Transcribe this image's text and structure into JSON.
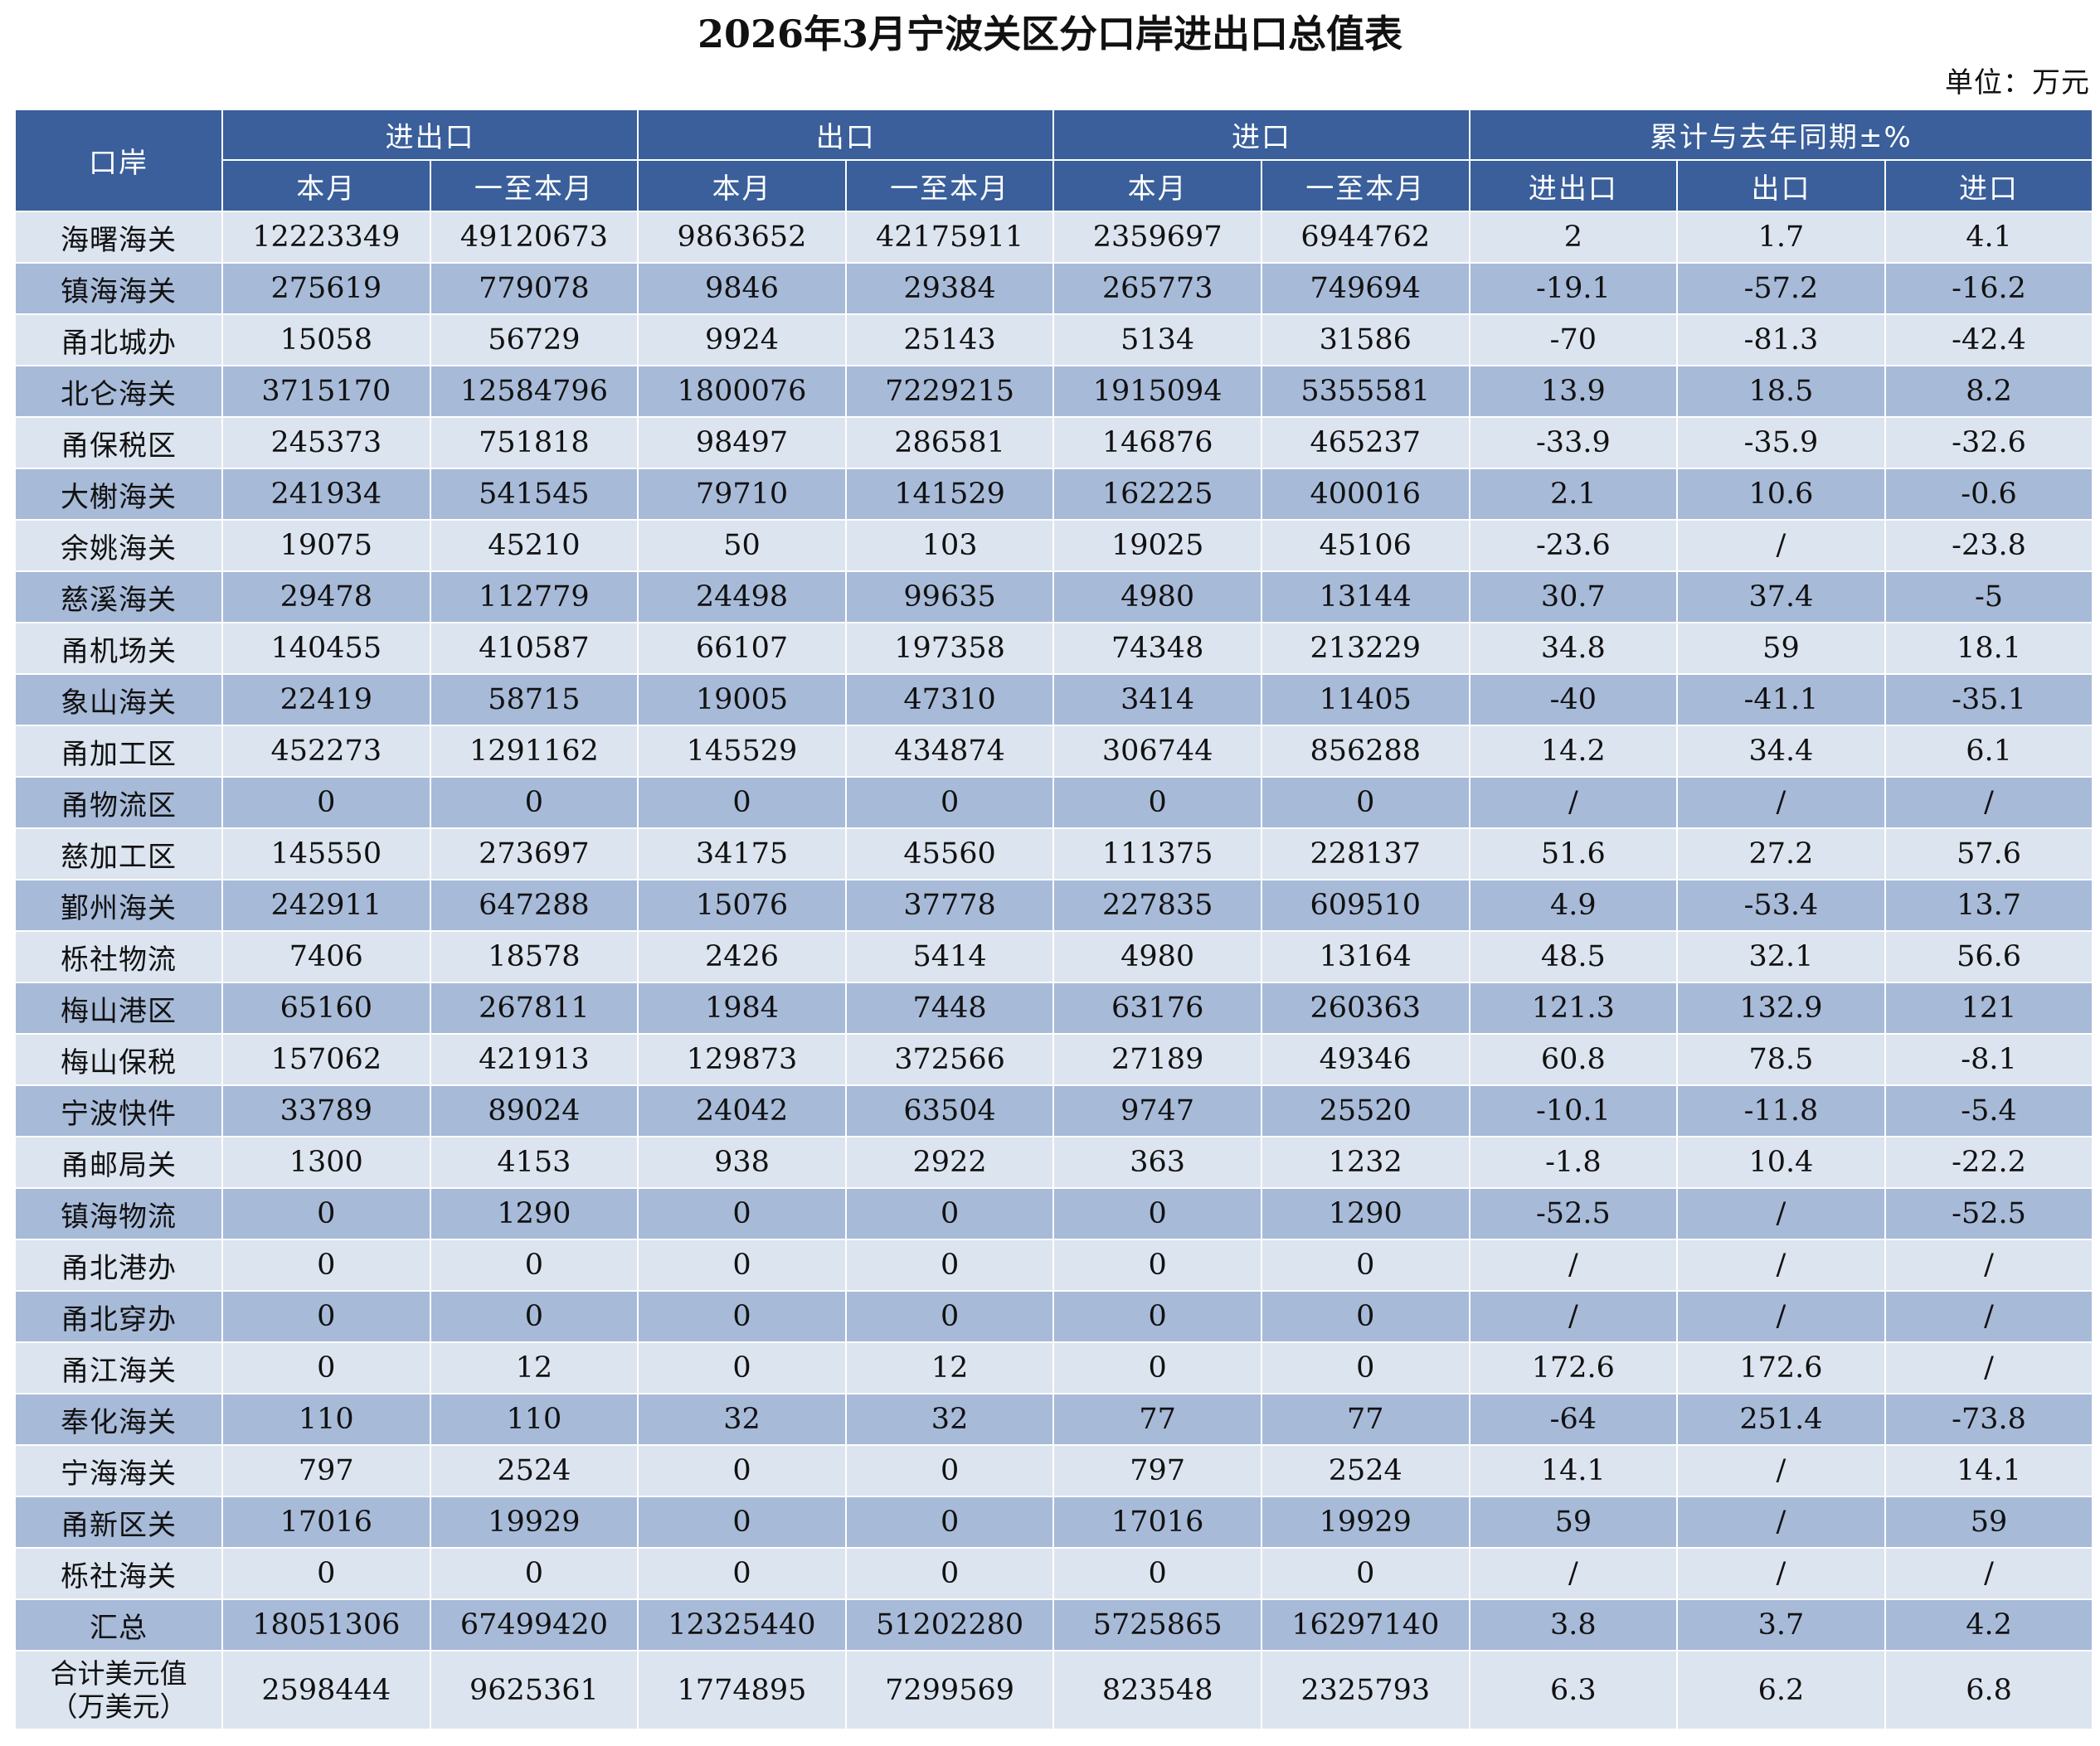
{
  "title": "2026年3月宁波关区分口岸进出口总值表",
  "unit": "单位：万元",
  "header": {
    "port": "口岸",
    "groups": [
      "进出口",
      "出口",
      "进口",
      "累计与去年同期±%"
    ],
    "sub": [
      "本月",
      "一至本月",
      "本月",
      "一至本月",
      "本月",
      "一至本月",
      "进出口",
      "出口",
      "进口"
    ]
  },
  "rows": [
    {
      "port": "海曙海关",
      "values": [
        "12223349",
        "49120673",
        "9863652",
        "42175911",
        "2359697",
        "6944762",
        "2",
        "1.7",
        "4.1"
      ]
    },
    {
      "port": "镇海海关",
      "values": [
        "275619",
        "779078",
        "9846",
        "29384",
        "265773",
        "749694",
        "-19.1",
        "-57.2",
        "-16.2"
      ]
    },
    {
      "port": "甬北城办",
      "values": [
        "15058",
        "56729",
        "9924",
        "25143",
        "5134",
        "31586",
        "-70",
        "-81.3",
        "-42.4"
      ]
    },
    {
      "port": "北仑海关",
      "values": [
        "3715170",
        "12584796",
        "1800076",
        "7229215",
        "1915094",
        "5355581",
        "13.9",
        "18.5",
        "8.2"
      ]
    },
    {
      "port": "甬保税区",
      "values": [
        "245373",
        "751818",
        "98497",
        "286581",
        "146876",
        "465237",
        "-33.9",
        "-35.9",
        "-32.6"
      ]
    },
    {
      "port": "大榭海关",
      "values": [
        "241934",
        "541545",
        "79710",
        "141529",
        "162225",
        "400016",
        "2.1",
        "10.6",
        "-0.6"
      ]
    },
    {
      "port": "余姚海关",
      "values": [
        "19075",
        "45210",
        "50",
        "103",
        "19025",
        "45106",
        "-23.6",
        "/",
        "-23.8"
      ]
    },
    {
      "port": "慈溪海关",
      "values": [
        "29478",
        "112779",
        "24498",
        "99635",
        "4980",
        "13144",
        "30.7",
        "37.4",
        "-5"
      ]
    },
    {
      "port": "甬机场关",
      "values": [
        "140455",
        "410587",
        "66107",
        "197358",
        "74348",
        "213229",
        "34.8",
        "59",
        "18.1"
      ]
    },
    {
      "port": "象山海关",
      "values": [
        "22419",
        "58715",
        "19005",
        "47310",
        "3414",
        "11405",
        "-40",
        "-41.1",
        "-35.1"
      ]
    },
    {
      "port": "甬加工区",
      "values": [
        "452273",
        "1291162",
        "145529",
        "434874",
        "306744",
        "856288",
        "14.2",
        "34.4",
        "6.1"
      ]
    },
    {
      "port": "甬物流区",
      "values": [
        "0",
        "0",
        "0",
        "0",
        "0",
        "0",
        "/",
        "/",
        "/"
      ]
    },
    {
      "port": "慈加工区",
      "values": [
        "145550",
        "273697",
        "34175",
        "45560",
        "111375",
        "228137",
        "51.6",
        "27.2",
        "57.6"
      ]
    },
    {
      "port": "鄞州海关",
      "values": [
        "242911",
        "647288",
        "15076",
        "37778",
        "227835",
        "609510",
        "4.9",
        "-53.4",
        "13.7"
      ]
    },
    {
      "port": "栎社物流",
      "values": [
        "7406",
        "18578",
        "2426",
        "5414",
        "4980",
        "13164",
        "48.5",
        "32.1",
        "56.6"
      ]
    },
    {
      "port": "梅山港区",
      "values": [
        "65160",
        "267811",
        "1984",
        "7448",
        "63176",
        "260363",
        "121.3",
        "132.9",
        "121"
      ]
    },
    {
      "port": "梅山保税",
      "values": [
        "157062",
        "421913",
        "129873",
        "372566",
        "27189",
        "49346",
        "60.8",
        "78.5",
        "-8.1"
      ]
    },
    {
      "port": "宁波快件",
      "values": [
        "33789",
        "89024",
        "24042",
        "63504",
        "9747",
        "25520",
        "-10.1",
        "-11.8",
        "-5.4"
      ]
    },
    {
      "port": "甬邮局关",
      "values": [
        "1300",
        "4153",
        "938",
        "2922",
        "363",
        "1232",
        "-1.8",
        "10.4",
        "-22.2"
      ]
    },
    {
      "port": "镇海物流",
      "values": [
        "0",
        "1290",
        "0",
        "0",
        "0",
        "1290",
        "-52.5",
        "/",
        "-52.5"
      ]
    },
    {
      "port": "甬北港办",
      "values": [
        "0",
        "0",
        "0",
        "0",
        "0",
        "0",
        "/",
        "/",
        "/"
      ]
    },
    {
      "port": "甬北穿办",
      "values": [
        "0",
        "0",
        "0",
        "0",
        "0",
        "0",
        "/",
        "/",
        "/"
      ]
    },
    {
      "port": "甬江海关",
      "values": [
        "0",
        "12",
        "0",
        "12",
        "0",
        "0",
        "172.6",
        "172.6",
        "/"
      ]
    },
    {
      "port": "奉化海关",
      "values": [
        "110",
        "110",
        "32",
        "32",
        "77",
        "77",
        "-64",
        "251.4",
        "-73.8"
      ]
    },
    {
      "port": "宁海海关",
      "values": [
        "797",
        "2524",
        "0",
        "0",
        "797",
        "2524",
        "14.1",
        "/",
        "14.1"
      ]
    },
    {
      "port": "甬新区关",
      "values": [
        "17016",
        "19929",
        "0",
        "0",
        "17016",
        "19929",
        "59",
        "/",
        "59"
      ]
    },
    {
      "port": "栎社海关",
      "values": [
        "0",
        "0",
        "0",
        "0",
        "0",
        "0",
        "/",
        "/",
        "/"
      ]
    },
    {
      "port": "汇总",
      "values": [
        "18051306",
        "67499420",
        "12325440",
        "51202280",
        "5725865",
        "16297140",
        "3.8",
        "3.7",
        "4.2"
      ]
    }
  ],
  "footer": {
    "port_line1": "合计美元值",
    "port_line2": "（万美元）",
    "values": [
      "2598444",
      "9625361",
      "1774895",
      "7299569",
      "823548",
      "2325793",
      "6.3",
      "6.2",
      "6.8"
    ]
  }
}
